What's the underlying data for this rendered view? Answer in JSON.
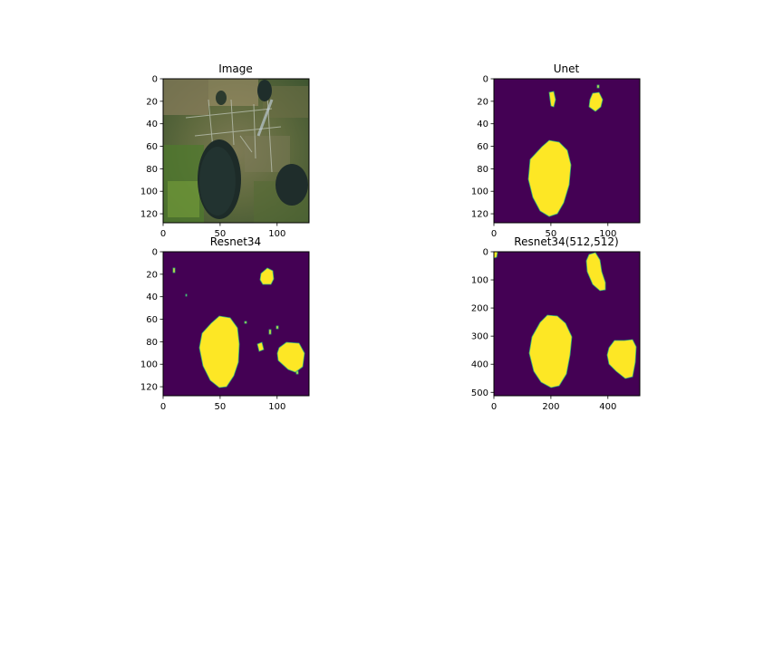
{
  "figure": {
    "colors": {
      "mask_background": "#440154",
      "mask_foreground": "#fde725",
      "mask_edge": "#35b779"
    }
  },
  "chart_data": [
    {
      "type": "heatmap",
      "title": "Image",
      "content": "aerial photo: farmland with two dark lakes",
      "xlim": [
        0,
        128
      ],
      "ylim": [
        128,
        0
      ],
      "xticks": [
        0,
        50,
        100
      ],
      "yticks": [
        0,
        20,
        40,
        60,
        80,
        100,
        120
      ]
    },
    {
      "type": "heatmap",
      "title": "Unet",
      "content": "binary segmentation mask",
      "xlim": [
        0,
        128
      ],
      "ylim": [
        128,
        0
      ],
      "xticks": [
        0,
        50,
        100
      ],
      "yticks": [
        0,
        20,
        40,
        60,
        80,
        100,
        120
      ]
    },
    {
      "type": "heatmap",
      "title": "Resnet34",
      "content": "binary segmentation mask",
      "xlim": [
        0,
        128
      ],
      "ylim": [
        128,
        0
      ],
      "xticks": [
        0,
        50,
        100
      ],
      "yticks": [
        0,
        20,
        40,
        60,
        80,
        100,
        120
      ]
    },
    {
      "type": "heatmap",
      "title": "Resnet34(512,512)",
      "content": "binary segmentation mask",
      "xlim": [
        0,
        512
      ],
      "ylim": [
        512,
        0
      ],
      "xticks": [
        0,
        200,
        400
      ],
      "yticks": [
        0,
        100,
        200,
        300,
        400,
        500
      ]
    }
  ]
}
